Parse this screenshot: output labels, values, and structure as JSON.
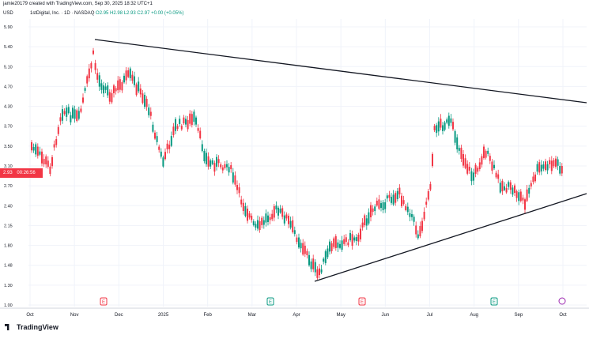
{
  "header": {
    "attribution": "jamie20179 created with TradingView.com, Sep 30, 2025 18:32 UTC+1",
    "symbol_line": "1stDigital, Inc. · 1D · NASDAQ",
    "ohlc": "O2.95 H2.98 L2.93 C2.97 +0.00 (+0.05%)",
    "currency": "USD"
  },
  "price_tag": {
    "value": "2.93",
    "extra": "00:26:56"
  },
  "brand": "TradingView",
  "chart_data": {
    "type": "candlestick",
    "y_ticks": [
      "5.90",
      "5.40",
      "5.10",
      "4.70",
      "4.30",
      "3.70",
      "3.50",
      "3.10",
      "2.70",
      "2.40",
      "2.15",
      "1.80",
      "1.48",
      "1.30",
      "1.00"
    ],
    "x_ticks": [
      "Oct",
      "Nov",
      "Dec",
      "2025",
      "Feb",
      "Mar",
      "Apr",
      "May",
      "Jun",
      "Jul",
      "Aug",
      "Sep",
      "Oct"
    ],
    "trendlines": [
      {
        "name": "upper",
        "from": [
          "Nov",
          "5.60"
        ],
        "to": [
          "Oct",
          "4.30"
        ]
      },
      {
        "name": "lower",
        "from": [
          "Apr",
          "1.00"
        ],
        "to": [
          "Oct",
          "2.70"
        ]
      }
    ],
    "event_markers": [
      {
        "label": "E",
        "color": "#f23645",
        "x": "Nov"
      },
      {
        "label": "E",
        "color": "#089981",
        "x": "Mar"
      },
      {
        "label": "E",
        "color": "#f23645",
        "x": "May"
      },
      {
        "label": "E",
        "color": "#089981",
        "x": "Aug"
      }
    ],
    "colors": {
      "up": "#089981",
      "down": "#f23645",
      "line": "#131722",
      "grid": "#f0f3fa"
    }
  }
}
